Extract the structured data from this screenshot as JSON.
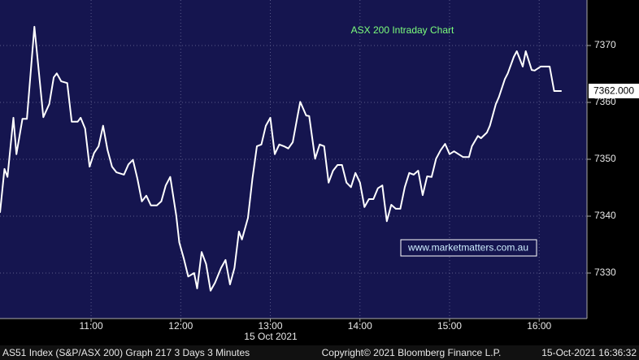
{
  "chart_data": {
    "type": "line",
    "title": "ASX 200 Intraday Chart",
    "annotation": "www.marketmatters.com.au",
    "x_sublabel": "15 Oct 2021",
    "footer_left": "AS51 Index (S&P/ASX 200) Graph 217 3 Days 3 Minutes",
    "footer_center": "Copyright© 2021 Bloomberg Finance L.P.",
    "footer_right": "15-Oct-2021 16:36:32",
    "color": "#ffffff",
    "grid": true,
    "x": [
      599,
      602,
      604,
      608,
      610,
      614,
      617,
      622,
      628,
      632,
      635,
      637,
      640,
      644,
      647,
      651,
      653,
      656,
      659,
      662,
      665,
      668,
      671,
      674,
      677,
      682,
      685,
      688,
      691,
      694,
      697,
      700,
      704,
      707,
      710,
      713,
      717,
      719,
      722,
      725,
      729,
      731,
      734,
      737,
      740,
      743,
      747,
      750,
      753,
      756,
      759,
      761,
      765,
      768,
      771,
      774,
      777,
      780,
      783,
      786,
      789,
      792,
      795,
      798,
      800,
      804,
      806,
      810,
      813,
      816,
      819,
      822,
      825,
      828,
      831,
      834,
      837,
      840,
      843,
      846,
      849,
      852,
      855,
      858,
      861,
      864,
      867,
      870,
      873,
      876,
      879,
      882,
      885,
      888,
      891,
      894,
      897,
      900,
      903,
      906,
      909,
      913,
      915,
      919,
      921,
      925,
      927,
      931,
      933,
      937,
      939,
      943,
      945,
      949,
      951,
      955,
      957,
      961,
      964,
      967,
      970,
      975
    ],
    "values": [
      7340.6,
      7348.3,
      7346.9,
      7357.3,
      7350.9,
      7357.1,
      7357.1,
      7373.3,
      7357.4,
      7359.7,
      7364.4,
      7365.1,
      7363.7,
      7363.4,
      7356.6,
      7356.6,
      7357.3,
      7355.4,
      7348.7,
      7351.1,
      7352.3,
      7355.9,
      7351.6,
      7348.7,
      7347.7,
      7347.3,
      7349.1,
      7349.9,
      7346.6,
      7342.6,
      7343.6,
      7341.9,
      7341.9,
      7342.6,
      7345.4,
      7346.9,
      7340.1,
      7335.4,
      7332.6,
      7329.4,
      7330.0,
      7327.3,
      7333.7,
      7331.6,
      7326.9,
      7328.3,
      7330.9,
      7332.3,
      7328.0,
      7330.9,
      7337.3,
      7335.9,
      7339.7,
      7346.6,
      7352.3,
      7352.6,
      7355.9,
      7357.3,
      7350.9,
      7352.6,
      7352.3,
      7351.9,
      7353.0,
      7357.3,
      7360.1,
      7357.7,
      7357.6,
      7350.1,
      7352.6,
      7352.3,
      7345.9,
      7348.0,
      7349.0,
      7349.0,
      7345.9,
      7345.1,
      7347.6,
      7345.9,
      7341.6,
      7343.0,
      7343.0,
      7344.9,
      7345.4,
      7339.1,
      7342.0,
      7341.3,
      7341.3,
      7345.1,
      7347.6,
      7347.3,
      7348.0,
      7343.7,
      7347.0,
      7346.9,
      7350.1,
      7351.6,
      7352.7,
      7350.9,
      7351.4,
      7350.9,
      7350.4,
      7350.4,
      7352.3,
      7354.1,
      7353.7,
      7354.7,
      7355.9,
      7359.7,
      7360.9,
      7364.1,
      7365.1,
      7368.0,
      7369.0,
      7366.3,
      7369.0,
      7365.7,
      7365.6,
      7366.3,
      7366.3,
      7366.3,
      7362.0,
      7362.0
    ],
    "last_price": {
      "value": 7362,
      "label": "7362.000"
    },
    "xlim": [
      599,
      992
    ],
    "xticks": [
      {
        "value": 660,
        "label": "11:00"
      },
      {
        "value": 720,
        "label": "12:00"
      },
      {
        "value": 780,
        "label": "13:00"
      },
      {
        "value": 840,
        "label": "14:00"
      },
      {
        "value": 900,
        "label": "15:00"
      },
      {
        "value": 960,
        "label": "16:00"
      }
    ],
    "ylim": [
      7322,
      7378
    ],
    "yticks": [
      7330,
      7340,
      7350,
      7360,
      7370
    ]
  }
}
